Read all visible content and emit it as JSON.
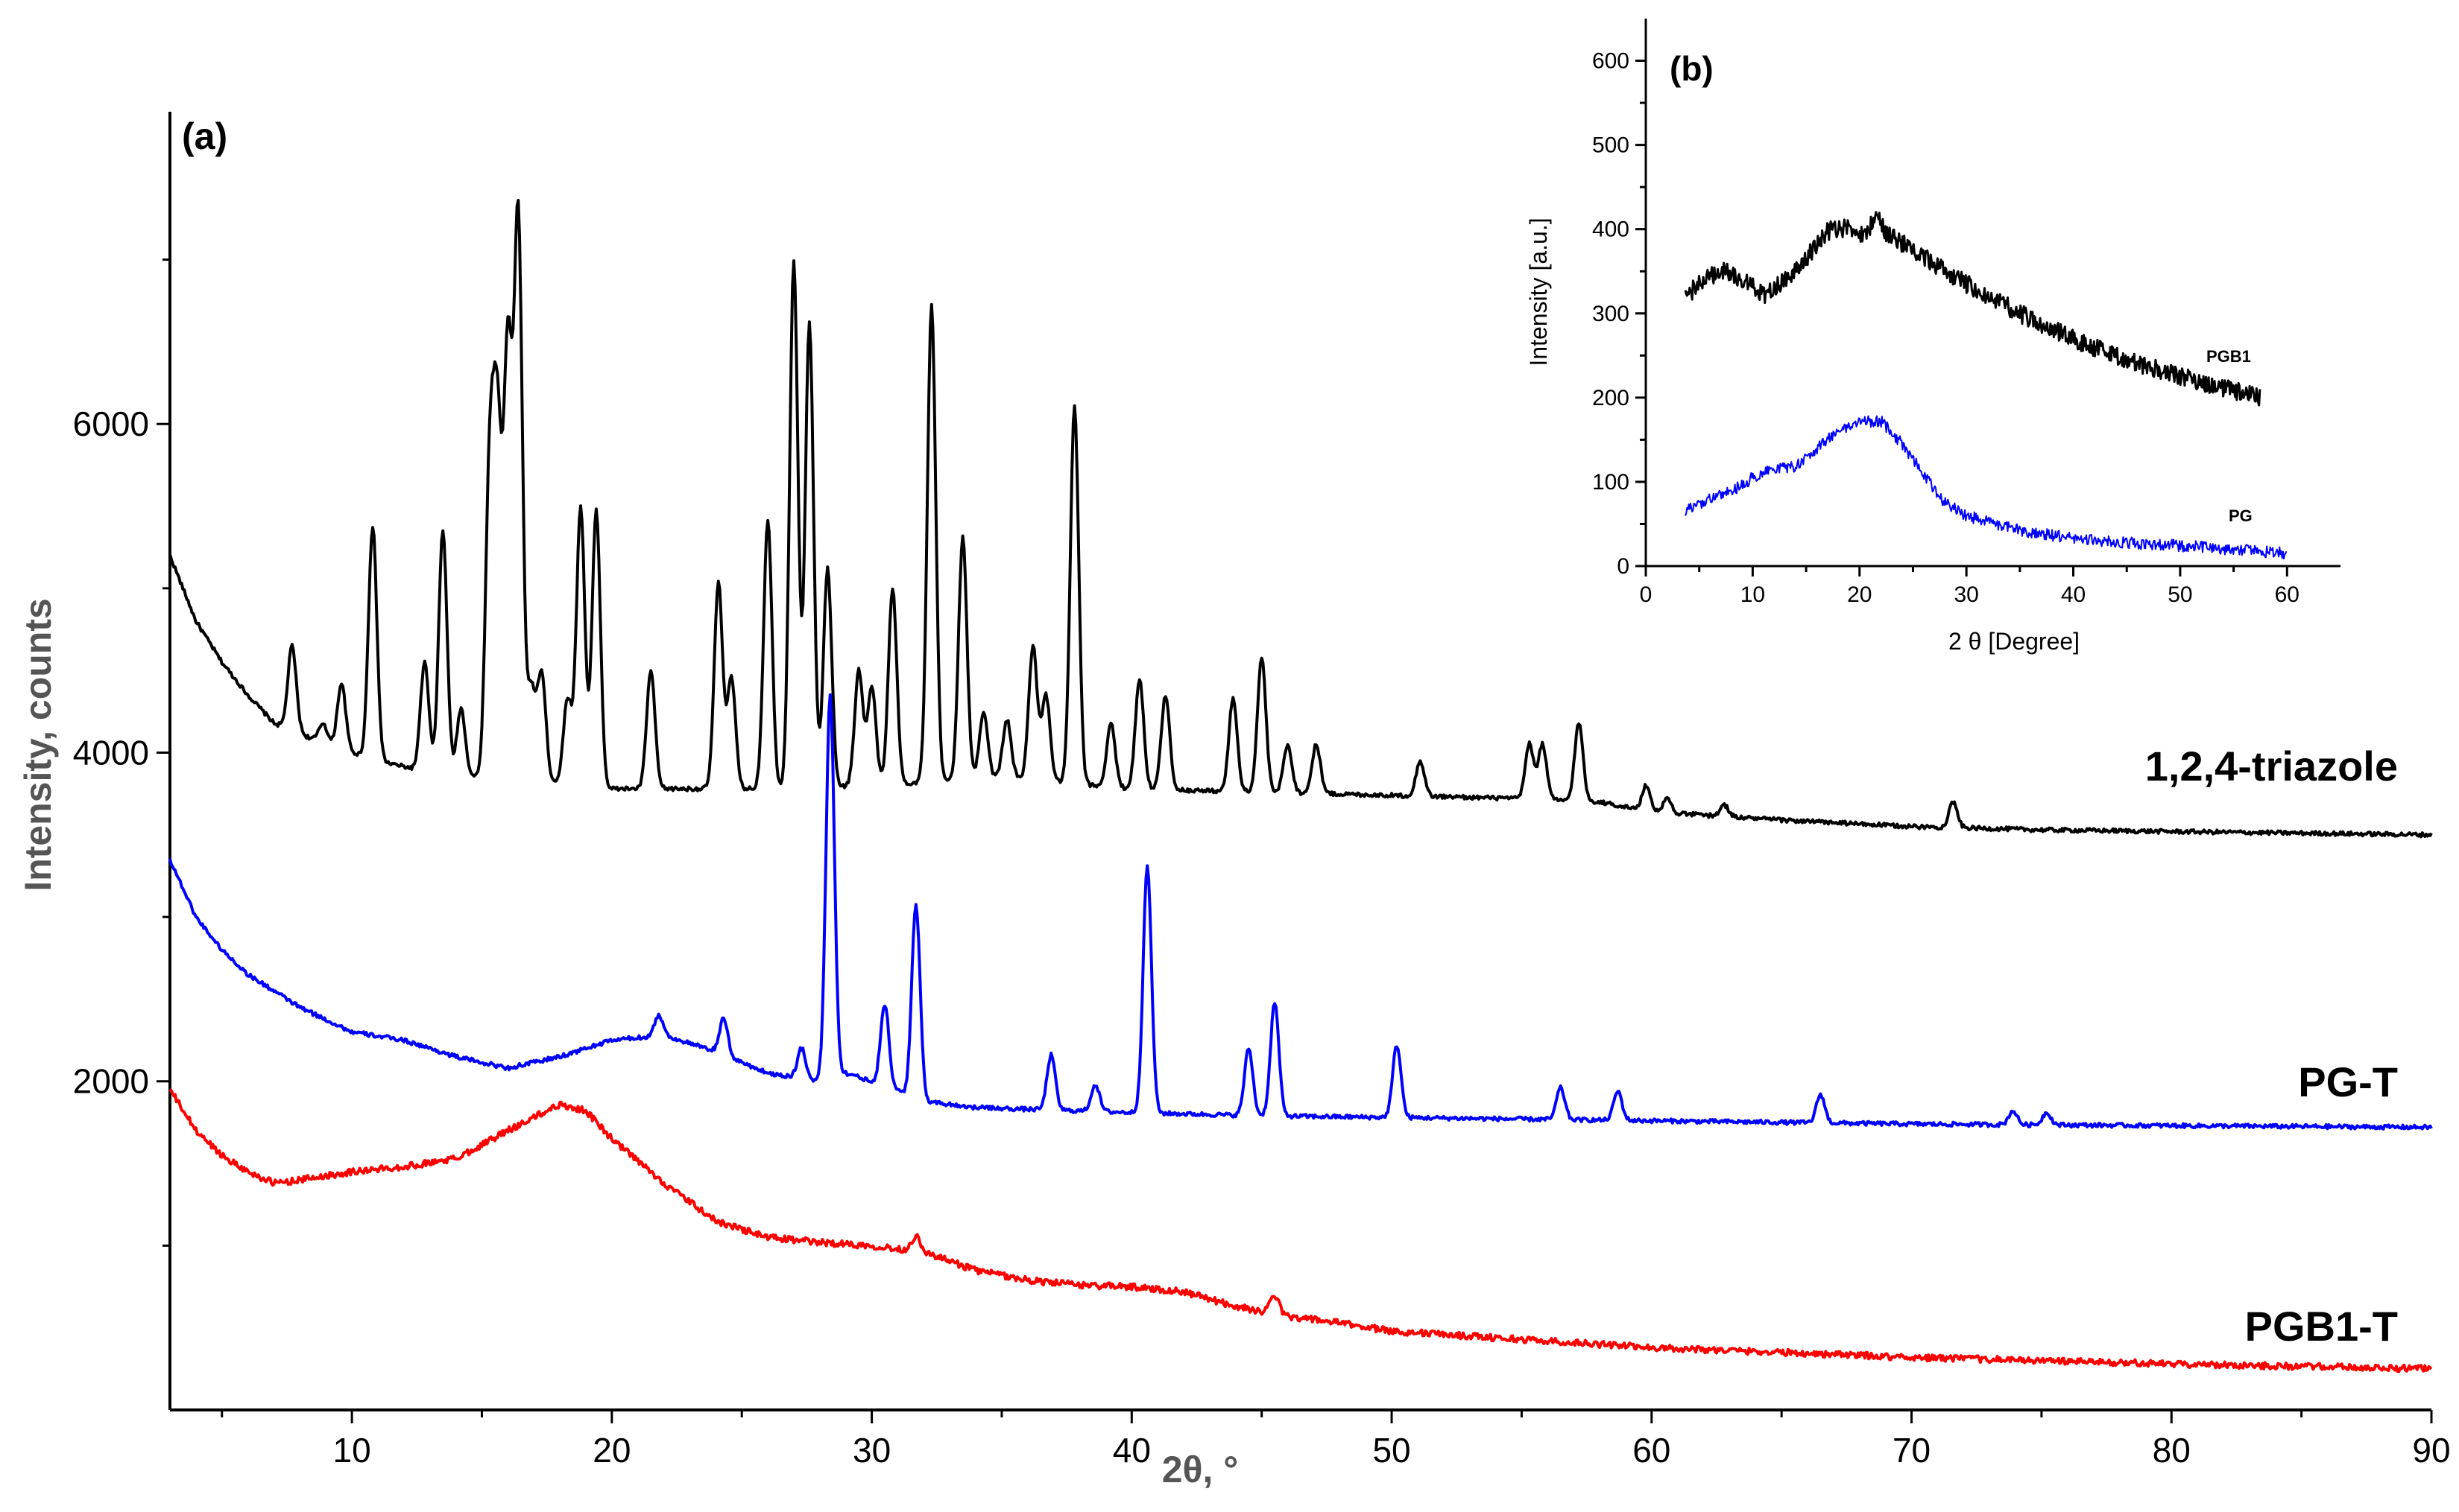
{
  "chart_data": [
    {
      "panel": "(a)",
      "type": "line",
      "xlabel": "2θ, °",
      "ylabel": "Intensity, counts",
      "xlim": [
        3,
        90
      ],
      "ylim": [
        0,
        7900
      ],
      "x_ticks": [
        10,
        20,
        30,
        40,
        50,
        60,
        70,
        80,
        90
      ],
      "y_ticks": [
        2000,
        4000,
        6000
      ],
      "grid": false,
      "legend": "none (labels placed beside curves on the right)",
      "series": [
        {
          "name": "1,2,4-triazole",
          "color": "#000000",
          "baseline": [
            [
              3,
              5200
            ],
            [
              4,
              4800
            ],
            [
              5,
              4550
            ],
            [
              6,
              4350
            ],
            [
              7,
              4180
            ],
            [
              9,
              4050
            ],
            [
              11,
              3950
            ],
            [
              13,
              3880
            ],
            [
              15,
              3850
            ],
            [
              18,
              3820
            ],
            [
              20,
              3780
            ],
            [
              23,
              3780
            ],
            [
              26,
              3780
            ],
            [
              30,
              3800
            ],
            [
              35,
              3850
            ],
            [
              40,
              3780
            ],
            [
              45,
              3760
            ],
            [
              50,
              3740
            ],
            [
              55,
              3720
            ],
            [
              58,
              3700
            ],
            [
              60,
              3640
            ],
            [
              65,
              3590
            ],
            [
              70,
              3550
            ],
            [
              75,
              3530
            ],
            [
              80,
              3520
            ],
            [
              85,
              3510
            ],
            [
              90,
              3500
            ]
          ],
          "peaks": [
            [
              7.7,
              4650
            ],
            [
              8.9,
              4180
            ],
            [
              9.6,
              4420
            ],
            [
              10.8,
              5380
            ],
            [
              12.8,
              4550
            ],
            [
              13.5,
              5350
            ],
            [
              14.2,
              4270
            ],
            [
              15.3,
              5680
            ],
            [
              15.6,
              5870
            ],
            [
              16.0,
              6420
            ],
            [
              16.4,
              7250
            ],
            [
              16.9,
              4380
            ],
            [
              17.3,
              4480
            ],
            [
              18.3,
              4330
            ],
            [
              18.8,
              5500
            ],
            [
              19.4,
              5470
            ],
            [
              21.5,
              4500
            ],
            [
              24.1,
              5030
            ],
            [
              24.6,
              4450
            ],
            [
              26.0,
              5420
            ],
            [
              27.0,
              6980
            ],
            [
              27.6,
              6610
            ],
            [
              28.3,
              5120
            ],
            [
              29.5,
              4500
            ],
            [
              30.0,
              4400
            ],
            [
              30.8,
              5000
            ],
            [
              32.3,
              6720
            ],
            [
              33.5,
              5310
            ],
            [
              34.3,
              4250
            ],
            [
              35.2,
              4200
            ],
            [
              36.2,
              4650
            ],
            [
              36.7,
              4350
            ],
            [
              37.8,
              6110
            ],
            [
              39.2,
              4180
            ],
            [
              40.3,
              4450
            ],
            [
              41.3,
              4350
            ],
            [
              43.9,
              4330
            ],
            [
              45.0,
              4580
            ],
            [
              46.0,
              4050
            ],
            [
              47.1,
              4050
            ],
            [
              51.1,
              3950
            ],
            [
              55.3,
              4050
            ],
            [
              55.8,
              4050
            ],
            [
              57.2,
              4180
            ],
            [
              59.8,
              3800
            ],
            [
              60.6,
              3720
            ],
            [
              62.8,
              3680
            ],
            [
              71.6,
              3700
            ]
          ]
        },
        {
          "name": "PG-T",
          "color": "#0000ff",
          "baseline": [
            [
              3,
              3350
            ],
            [
              4,
              3000
            ],
            [
              5,
              2800
            ],
            [
              6,
              2650
            ],
            [
              8,
              2450
            ],
            [
              10,
              2300
            ],
            [
              12,
              2250
            ],
            [
              14,
              2150
            ],
            [
              16,
              2080
            ],
            [
              18,
              2150
            ],
            [
              20,
              2250
            ],
            [
              22,
              2280
            ],
            [
              24,
              2180
            ],
            [
              26,
              2050
            ],
            [
              28,
              2000
            ],
            [
              29,
              2050
            ],
            [
              30,
              2000
            ],
            [
              32,
              1880
            ],
            [
              34,
              1840
            ],
            [
              36,
              1830
            ],
            [
              38,
              1820
            ],
            [
              40,
              1810
            ],
            [
              45,
              1790
            ],
            [
              50,
              1780
            ],
            [
              55,
              1770
            ],
            [
              60,
              1760
            ],
            [
              65,
              1750
            ],
            [
              70,
              1740
            ],
            [
              75,
              1735
            ],
            [
              80,
              1730
            ],
            [
              85,
              1725
            ],
            [
              90,
              1720
            ]
          ],
          "peaks": [
            [
              21.8,
              2400
            ],
            [
              24.3,
              2380
            ],
            [
              27.3,
              2200
            ],
            [
              28.4,
              4350
            ],
            [
              30.5,
              2470
            ],
            [
              31.7,
              3070
            ],
            [
              36.9,
              2160
            ],
            [
              38.6,
              1980
            ],
            [
              40.6,
              3310
            ],
            [
              44.5,
              2200
            ],
            [
              45.5,
              2480
            ],
            [
              50.2,
              2220
            ],
            [
              56.5,
              1960
            ],
            [
              58.7,
              1940
            ],
            [
              66.5,
              1920
            ],
            [
              73.9,
              1820
            ],
            [
              75.2,
              1810
            ]
          ]
        },
        {
          "name": "PGB1-T",
          "color": "#ff0000",
          "baseline": [
            [
              3,
              1950
            ],
            [
              4,
              1700
            ],
            [
              5,
              1550
            ],
            [
              6,
              1450
            ],
            [
              7,
              1380
            ],
            [
              8,
              1400
            ],
            [
              10,
              1450
            ],
            [
              12,
              1480
            ],
            [
              14,
              1530
            ],
            [
              16,
              1700
            ],
            [
              18,
              1860
            ],
            [
              19,
              1820
            ],
            [
              20,
              1650
            ],
            [
              22,
              1380
            ],
            [
              24,
              1150
            ],
            [
              26,
              1050
            ],
            [
              28,
              1020
            ],
            [
              30,
              1000
            ],
            [
              32,
              960
            ],
            [
              34,
              850
            ],
            [
              36,
              790
            ],
            [
              38,
              760
            ],
            [
              40,
              750
            ],
            [
              42,
              720
            ],
            [
              44,
              630
            ],
            [
              46,
              570
            ],
            [
              48,
              530
            ],
            [
              50,
              480
            ],
            [
              55,
              430
            ],
            [
              60,
              380
            ],
            [
              65,
              350
            ],
            [
              70,
              320
            ],
            [
              75,
              300
            ],
            [
              80,
              280
            ],
            [
              85,
              265
            ],
            [
              90,
              250
            ]
          ],
          "peaks": [
            [
              31.7,
              1060
            ],
            [
              45.5,
              700
            ]
          ]
        }
      ]
    },
    {
      "panel": "(b)",
      "type": "line",
      "xlabel": "2 θ [Degree]",
      "ylabel": "Intensity [a.u.]",
      "xlim": [
        0,
        65
      ],
      "ylim": [
        0,
        650
      ],
      "x_ticks": [
        0,
        10,
        20,
        30,
        40,
        50,
        60
      ],
      "y_ticks": [
        0,
        100,
        200,
        300,
        400,
        500,
        600
      ],
      "grid": false,
      "legend": "none (labels placed beside curves on the right)",
      "series": [
        {
          "name": "PGB1",
          "color": "#000000",
          "points": [
            [
              3.7,
              320
            ],
            [
              5,
              335
            ],
            [
              7,
              352
            ],
            [
              9,
              340
            ],
            [
              11,
              322
            ],
            [
              13,
              338
            ],
            [
              15,
              365
            ],
            [
              17,
              398
            ],
            [
              19,
              402
            ],
            [
              20.5,
              390
            ],
            [
              21.5,
              418
            ],
            [
              22.5,
              395
            ],
            [
              25,
              375
            ],
            [
              30,
              335
            ],
            [
              35,
              300
            ],
            [
              40,
              270
            ],
            [
              45,
              245
            ],
            [
              50,
              225
            ],
            [
              55,
              208
            ],
            [
              57.5,
              200
            ]
          ]
        },
        {
          "name": "PG",
          "color": "#0000ff",
          "points": [
            [
              3.7,
              65
            ],
            [
              6,
              80
            ],
            [
              8,
              88
            ],
            [
              10,
              105
            ],
            [
              12,
              115
            ],
            [
              14,
              118
            ],
            [
              16,
              140
            ],
            [
              18,
              160
            ],
            [
              20,
              172
            ],
            [
              22,
              172
            ],
            [
              24,
              145
            ],
            [
              26,
              108
            ],
            [
              28,
              75
            ],
            [
              30,
              60
            ],
            [
              33,
              48
            ],
            [
              36,
              40
            ],
            [
              40,
              33
            ],
            [
              45,
              28
            ],
            [
              50,
              24
            ],
            [
              55,
              20
            ],
            [
              60,
              15
            ]
          ]
        }
      ]
    }
  ]
}
